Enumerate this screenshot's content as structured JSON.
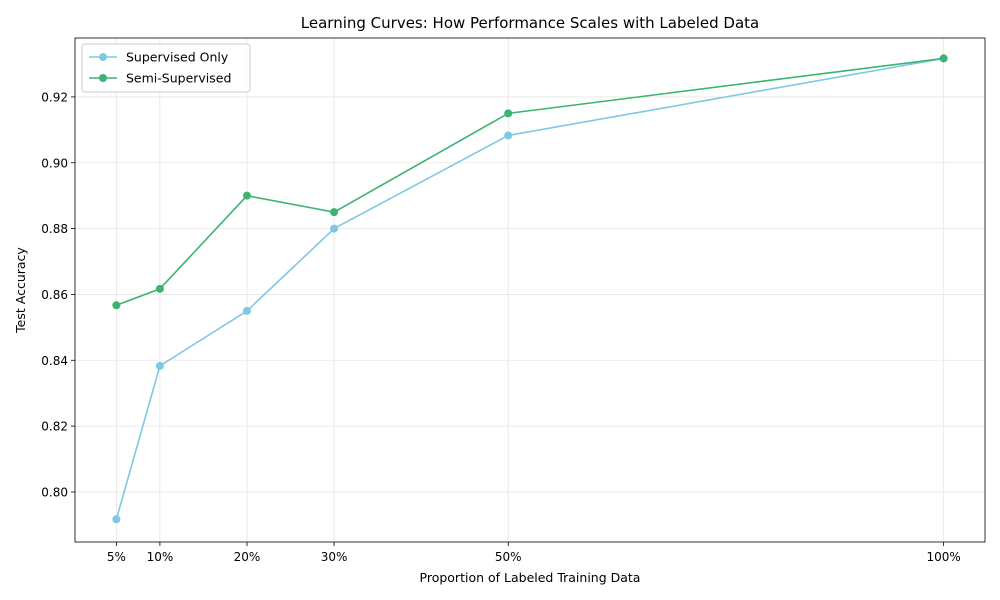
{
  "chart_data": {
    "type": "line",
    "title": "Learning Curves: How Performance Scales with Labeled Data",
    "xlabel": "Proportion of Labeled Training Data",
    "ylabel": "Test Accuracy",
    "x": [
      0.05,
      0.1,
      0.2,
      0.3,
      0.5,
      1.0
    ],
    "x_tick_labels": [
      "5%",
      "10%",
      "20%",
      "30%",
      "50%",
      "100%"
    ],
    "y_ticks": [
      0.8,
      0.82,
      0.84,
      0.86,
      0.88,
      0.9,
      0.92
    ],
    "y_tick_labels": [
      "0.80",
      "0.82",
      "0.84",
      "0.86",
      "0.88",
      "0.90",
      "0.92"
    ],
    "xlim": [
      0.0025,
      1.0475
    ],
    "ylim": [
      0.7848,
      0.9379
    ],
    "grid": true,
    "legend_position": "top-left",
    "series": [
      {
        "name": "Supervised Only",
        "color": "#7ec8e3",
        "values": [
          0.7917,
          0.8383,
          0.855,
          0.88,
          0.9083,
          0.9317
        ]
      },
      {
        "name": "Semi-Supervised",
        "color": "#3cb371",
        "values": [
          0.8567,
          0.8617,
          0.89,
          0.885,
          0.915,
          0.9317
        ]
      }
    ]
  }
}
